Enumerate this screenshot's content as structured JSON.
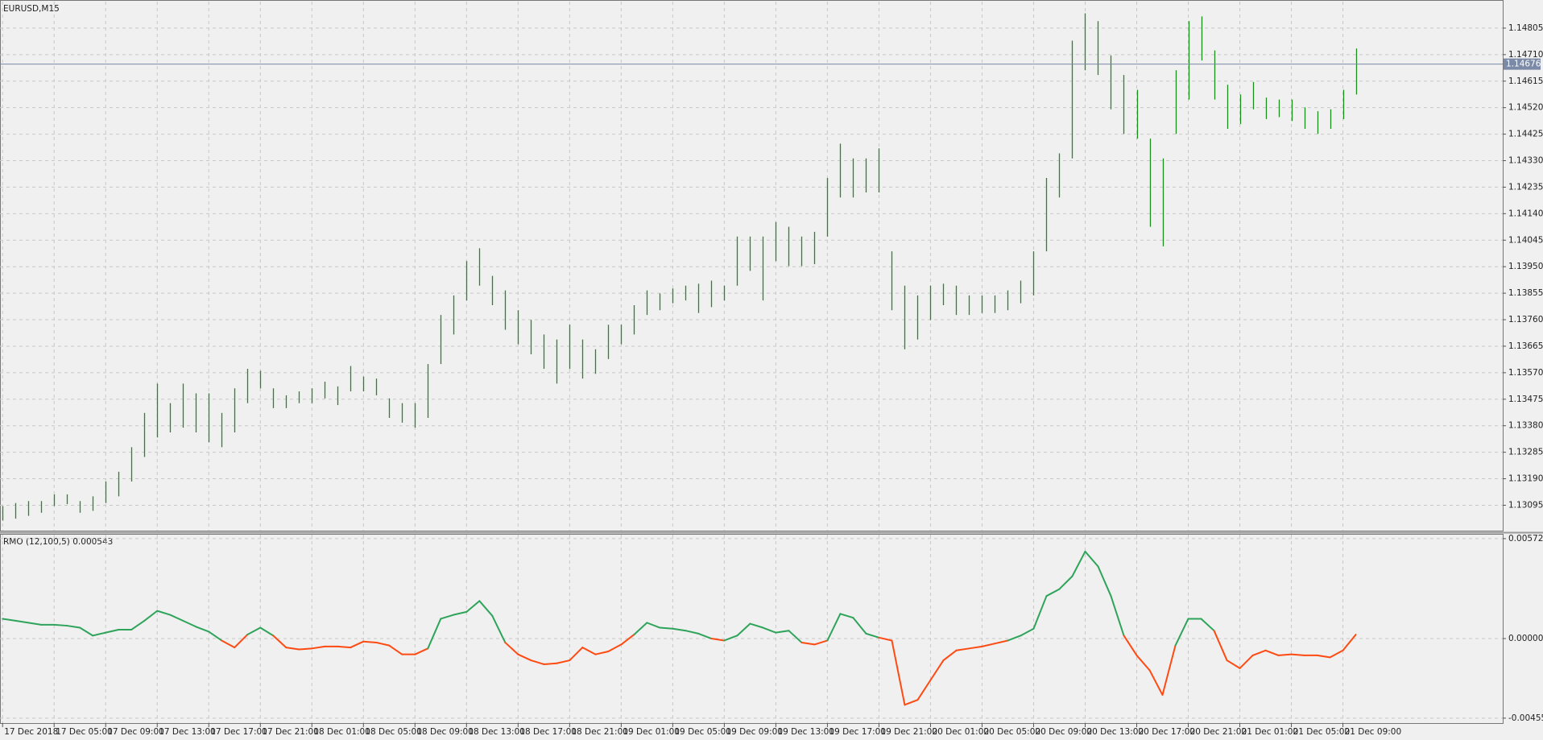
{
  "chart_data": [
    {
      "type": "ohlc",
      "title": "EURUSD,M15",
      "color": "#1e8c1e",
      "grid": true,
      "current_price": 1.14676,
      "current_color": "#7b8aa6",
      "xlim": [
        -0.2,
        116.4
      ],
      "ylim": [
        1.13004,
        1.149
      ],
      "yticks": [
        1.14805,
        {
          "value": 1.1471,
          "label": "1.14710"
        },
        1.14615,
        {
          "value": 1.1452,
          "label": "1.14520"
        },
        1.14425,
        {
          "value": 1.1433,
          "label": "1.14330"
        },
        1.14235,
        {
          "value": 1.1414,
          "label": "1.14140"
        },
        1.14045,
        {
          "value": 1.1395,
          "label": "1.13950"
        },
        1.13855,
        {
          "value": 1.1376,
          "label": "1.13760"
        },
        1.13665,
        {
          "value": 1.1357,
          "label": "1.13570"
        },
        1.13475,
        {
          "value": 1.1338,
          "label": "1.13380"
        },
        1.13285,
        {
          "value": 1.1319,
          "label": "1.13190"
        },
        1.13095
      ],
      "high": [
        1.13092,
        1.13103,
        1.1311,
        1.1311,
        1.13134,
        1.13134,
        1.1311,
        1.13127,
        1.1318,
        1.13215,
        1.13303,
        1.13426,
        1.13531,
        1.13461,
        1.13531,
        1.13496,
        1.13496,
        1.13426,
        1.13514,
        1.13584,
        1.13577,
        1.13514,
        1.13489,
        1.13503,
        1.13514,
        1.13538,
        1.13521,
        1.13594,
        1.13556,
        1.13549,
        1.13478,
        1.13461,
        1.13461,
        1.13601,
        1.13777,
        1.13847,
        1.1397,
        1.14016,
        1.13917,
        1.13865,
        1.13794,
        1.13759,
        1.13707,
        1.13689,
        1.13742,
        1.13689,
        1.13654,
        1.13742,
        1.13742,
        1.13812,
        1.13865,
        1.13854,
        1.13872,
        1.13882,
        1.13889,
        1.139,
        1.13882,
        1.14058,
        1.14058,
        1.14058,
        1.1411,
        1.14093,
        1.14058,
        1.14075,
        1.14268,
        1.14391,
        1.14338,
        1.14338,
        1.14374,
        1.14005,
        1.13882,
        1.13847,
        1.13882,
        1.13889,
        1.13882,
        1.13847,
        1.13847,
        1.13847,
        1.13865,
        1.139,
        1.14005,
        1.14268,
        1.14356,
        1.1476,
        1.14858,
        1.1483,
        1.14707,
        1.14637,
        1.14584,
        1.14409,
        1.14338,
        1.14654,
        1.1483,
        1.14847,
        1.14725,
        1.14602,
        1.14567,
        1.14612,
        1.14556,
        1.14549,
        1.14549,
        1.14521,
        1.14507,
        1.14514,
        1.14584,
        1.14732
      ],
      "low": [
        1.1304,
        1.13047,
        1.13057,
        1.13068,
        1.13092,
        1.13099,
        1.13068,
        1.13075,
        1.13103,
        1.13127,
        1.1318,
        1.13268,
        1.13338,
        1.13356,
        1.13373,
        1.13356,
        1.13321,
        1.13303,
        1.13356,
        1.13461,
        1.13514,
        1.13443,
        1.13443,
        1.13461,
        1.13461,
        1.13478,
        1.13454,
        1.13503,
        1.13503,
        1.13489,
        1.13408,
        1.13391,
        1.13373,
        1.13408,
        1.13601,
        1.13707,
        1.13829,
        1.13882,
        1.13812,
        1.13724,
        1.13672,
        1.13636,
        1.13584,
        1.13531,
        1.13584,
        1.13549,
        1.13566,
        1.13619,
        1.13672,
        1.13707,
        1.13777,
        1.13794,
        1.13819,
        1.13829,
        1.13784,
        1.13805,
        1.13829,
        1.13882,
        1.13935,
        1.13829,
        1.1397,
        1.13952,
        1.13952,
        1.13959,
        1.14058,
        1.14198,
        1.14198,
        1.14216,
        1.14216,
        1.13794,
        1.13654,
        1.13689,
        1.13759,
        1.13812,
        1.13777,
        1.13777,
        1.13784,
        1.13784,
        1.13794,
        1.13819,
        1.13847,
        1.14005,
        1.14198,
        1.14338,
        1.14654,
        1.14637,
        1.14514,
        1.14426,
        1.14409,
        1.14093,
        1.14023,
        1.14426,
        1.14549,
        1.14689,
        1.14549,
        1.14444,
        1.14461,
        1.14514,
        1.14479,
        1.14486,
        1.14472,
        1.14444,
        1.14426,
        1.14444,
        1.14479,
        1.14567
      ]
    },
    {
      "type": "line",
      "title": "RMO (12,100,5) 0.000543",
      "grid": true,
      "up_color": "#2ea45a",
      "down_color": "#ff4a12",
      "xlim": [
        -0.2,
        116.4
      ],
      "ylim": [
        -0.00484,
        0.005949
      ],
      "yticks": [
        0.005722,
        {
          "value": 0,
          "label": "0.000000"
        },
        -0.004557
      ],
      "xticks": [
        {
          "value": 0,
          "label": "17 Dec 2018"
        },
        {
          "value": 4,
          "label": "17 Dec 05:00"
        },
        {
          "value": 8,
          "label": "17 Dec 09:00"
        },
        {
          "value": 12,
          "label": "17 Dec 13:00"
        },
        {
          "value": 16,
          "label": "17 Dec 17:00"
        },
        {
          "value": 20,
          "label": "17 Dec 21:00"
        },
        {
          "value": 24,
          "label": "18 Dec 01:00"
        },
        {
          "value": 28,
          "label": "18 Dec 05:00"
        },
        {
          "value": 32,
          "label": "18 Dec 09:00"
        },
        {
          "value": 36,
          "label": "18 Dec 13:00"
        },
        {
          "value": 40,
          "label": "18 Dec 17:00"
        },
        {
          "value": 44,
          "label": "18 Dec 21:00"
        },
        {
          "value": 48,
          "label": "19 Dec 01:00"
        },
        {
          "value": 52,
          "label": "19 Dec 05:00"
        },
        {
          "value": 56,
          "label": "19 Dec 09:00"
        },
        {
          "value": 60,
          "label": "19 Dec 13:00"
        },
        {
          "value": 64,
          "label": "19 Dec 17:00"
        },
        {
          "value": 68,
          "label": "19 Dec 21:00"
        },
        {
          "value": 72,
          "label": "20 Dec 01:00"
        },
        {
          "value": 76,
          "label": "20 Dec 05:00"
        },
        {
          "value": 80,
          "label": "20 Dec 09:00"
        },
        {
          "value": 84,
          "label": "20 Dec 13:00"
        },
        {
          "value": 88,
          "label": "20 Dec 17:00"
        },
        {
          "value": 92,
          "label": "20 Dec 21:00"
        },
        {
          "value": 96,
          "label": "21 Dec 01:00"
        },
        {
          "value": 100,
          "label": "21 Dec 05:00"
        },
        {
          "value": 104,
          "label": "21 Dec 09:00"
        }
      ],
      "values": [
        0.001133,
        0.00102,
        0.000906,
        0.000793,
        0.000793,
        0.000736,
        0.000623,
        0.00017,
        0.00034,
        0.00051,
        0.00051,
        0.00102,
        0.001586,
        0.00136,
        0.00102,
        0.00068,
        0.000397,
        -0.000113,
        -0.00051,
        0.000227,
        0.000623,
        0.00017,
        -0.00051,
        -0.000623,
        -0.000567,
        -0.000453,
        -0.000453,
        -0.00051,
        -0.00017,
        -0.000227,
        -0.000397,
        -0.000906,
        -0.000906,
        -0.000567,
        0.001133,
        0.00136,
        0.00153,
        0.002153,
        0.001303,
        -0.000227,
        -0.000906,
        -0.001246,
        -0.001473,
        -0.001416,
        -0.001246,
        -0.00051,
        -0.000906,
        -0.000736,
        -0.00034,
        0.000227,
        0.000906,
        0.000623,
        0.000567,
        0.000453,
        0.000283,
        0,
        -0.000113,
        0.00017,
        0.00085,
        0.000623,
        0.00034,
        0.000453,
        -0.000227,
        -0.00034,
        -0.000113,
        0.001416,
        0.00119,
        0.000283,
        5.7e-05,
        -0.000113,
        -0.003796,
        -0.003512,
        -0.002379,
        -0.001246,
        -0.00068,
        -0.000567,
        -0.000453,
        -0.000283,
        -0.000113,
        0.00017,
        0.000567,
        0.002436,
        0.002833,
        0.003569,
        0.004985,
        0.004135,
        0.002436,
        0.00017,
        -0.000963,
        -0.001813,
        -0.003229,
        -0.000397,
        0.001133,
        0.001133,
        0.000453,
        -0.001246,
        -0.0017,
        -0.000963,
        -0.00068,
        -0.000963,
        -0.000906,
        -0.000963,
        -0.000963,
        -0.001076,
        -0.00068,
        0.000227
      ]
    }
  ]
}
